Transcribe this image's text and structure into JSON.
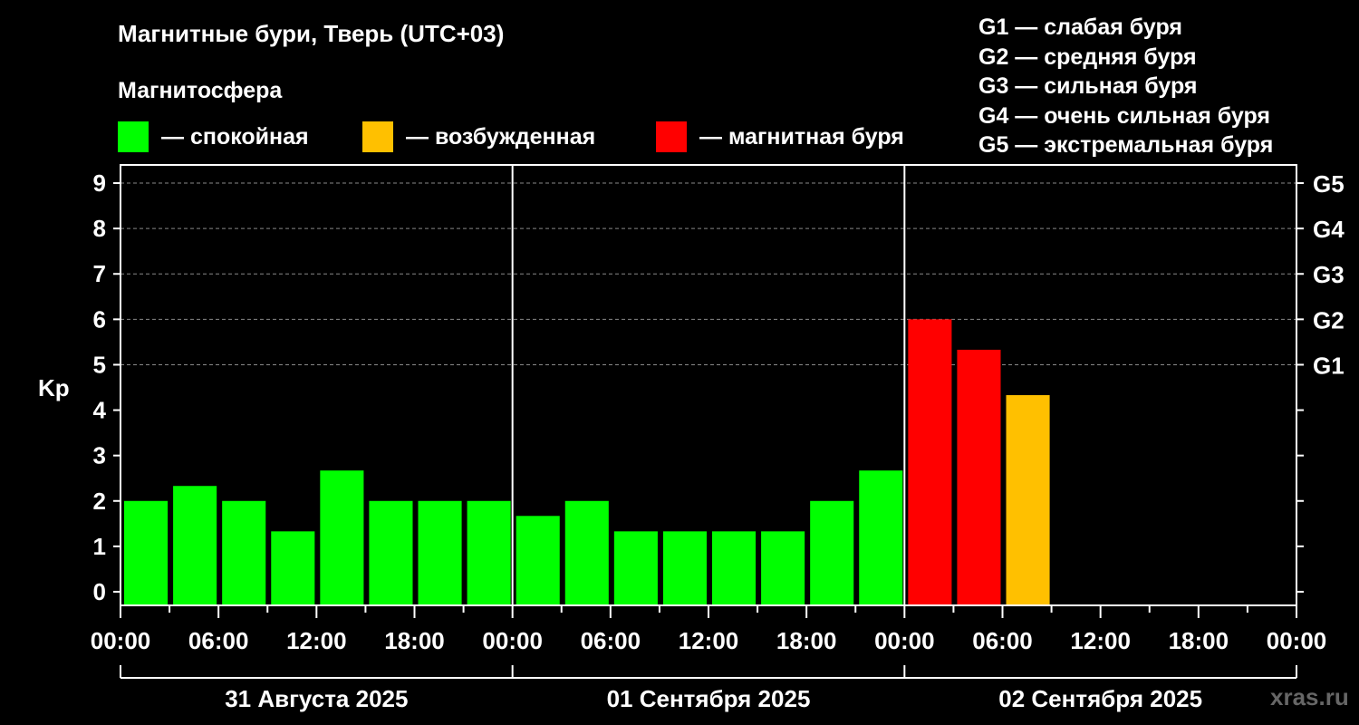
{
  "title": "Магнитные бури, Тверь (UTC+03)",
  "subtitle": "Магнитосфера",
  "legend": {
    "quiet": {
      "label": "— спокойная",
      "color": "#00ff00"
    },
    "excited": {
      "label": "— возбужденная",
      "color": "#ffc000"
    },
    "storm": {
      "label": "— магнитная буря",
      "color": "#ff0000"
    }
  },
  "g_legend": [
    "G1 — слабая буря",
    "G2 — средняя буря",
    "G3 — сильная буря",
    "G4 — очень сильная буря",
    "G5 — экстремальная буря"
  ],
  "watermark": "xras.ru",
  "chart_data": {
    "type": "bar",
    "ylabel": "Kp",
    "ylim": [
      -0.3,
      9.4
    ],
    "yticks": [
      0,
      1,
      2,
      3,
      4,
      5,
      6,
      7,
      8,
      9
    ],
    "right_ticks": [
      {
        "value": 5,
        "label": "G1"
      },
      {
        "value": 6,
        "label": "G2"
      },
      {
        "value": 7,
        "label": "G3"
      },
      {
        "value": 8,
        "label": "G4"
      },
      {
        "value": 9,
        "label": "G5"
      }
    ],
    "xtick_labels": [
      "00:00",
      "06:00",
      "12:00",
      "18:00",
      "00:00",
      "06:00",
      "12:00",
      "18:00",
      "00:00",
      "06:00",
      "12:00",
      "18:00",
      "00:00"
    ],
    "days": [
      "31 Августа 2025",
      "01 Сентября 2025",
      "02 Сентября 2025"
    ],
    "bin_hours": 3,
    "grid": true,
    "values": [
      2.0,
      2.33,
      2.0,
      1.33,
      2.67,
      2.0,
      2.0,
      2.0,
      1.67,
      2.0,
      1.33,
      1.33,
      1.33,
      1.33,
      2.0,
      2.67,
      6.0,
      5.33,
      4.33
    ],
    "levels": [
      "quiet",
      "quiet",
      "quiet",
      "quiet",
      "quiet",
      "quiet",
      "quiet",
      "quiet",
      "quiet",
      "quiet",
      "quiet",
      "quiet",
      "quiet",
      "quiet",
      "quiet",
      "quiet",
      "storm",
      "storm",
      "excited"
    ]
  }
}
